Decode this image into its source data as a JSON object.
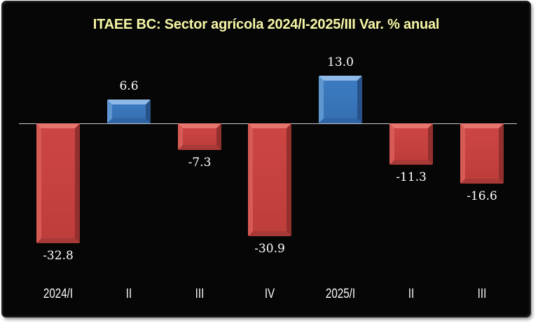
{
  "chart_data": {
    "type": "bar",
    "title": "ITAEE BC: Sector agrícola 2024/I-2025/III Var. % anual",
    "categories": [
      "2024/I",
      "II",
      "III",
      "IV",
      "2025/I",
      "II",
      "III"
    ],
    "values": [
      -32.8,
      6.6,
      -7.3,
      -30.9,
      13.0,
      -11.3,
      -16.6
    ],
    "data_labels": [
      "-32.8",
      "6.6",
      "-7.3",
      "-30.9",
      "13.0",
      "-11.3",
      "-16.6"
    ],
    "xlabel": "",
    "ylabel": "",
    "ylim": [
      -35,
      15
    ],
    "grid": false,
    "legend": false,
    "baseline": 0
  },
  "palette": {
    "title_color": "#F6F6A6",
    "label_color": "#FFFFFF",
    "category_color": "#F8F8F8",
    "axis_line": "#C9C9C9",
    "frame_bg": "#060606",
    "page_bg": "#FFFFFF",
    "positive": {
      "face": "#3C7BC1",
      "face_dark": "#3570B2",
      "bevel_top": "#8FB9E6",
      "bevel_left": "#5E96D0",
      "bevel_right": "#265289",
      "bevel_bottom": "#2F64A6"
    },
    "negative": {
      "face": "#CC4543",
      "face_dark": "#BE3E3C",
      "bevel_top": "#E8746E",
      "bevel_left": "#D85A55",
      "bevel_right": "#93302E",
      "bevel_bottom": "#A83936"
    }
  }
}
